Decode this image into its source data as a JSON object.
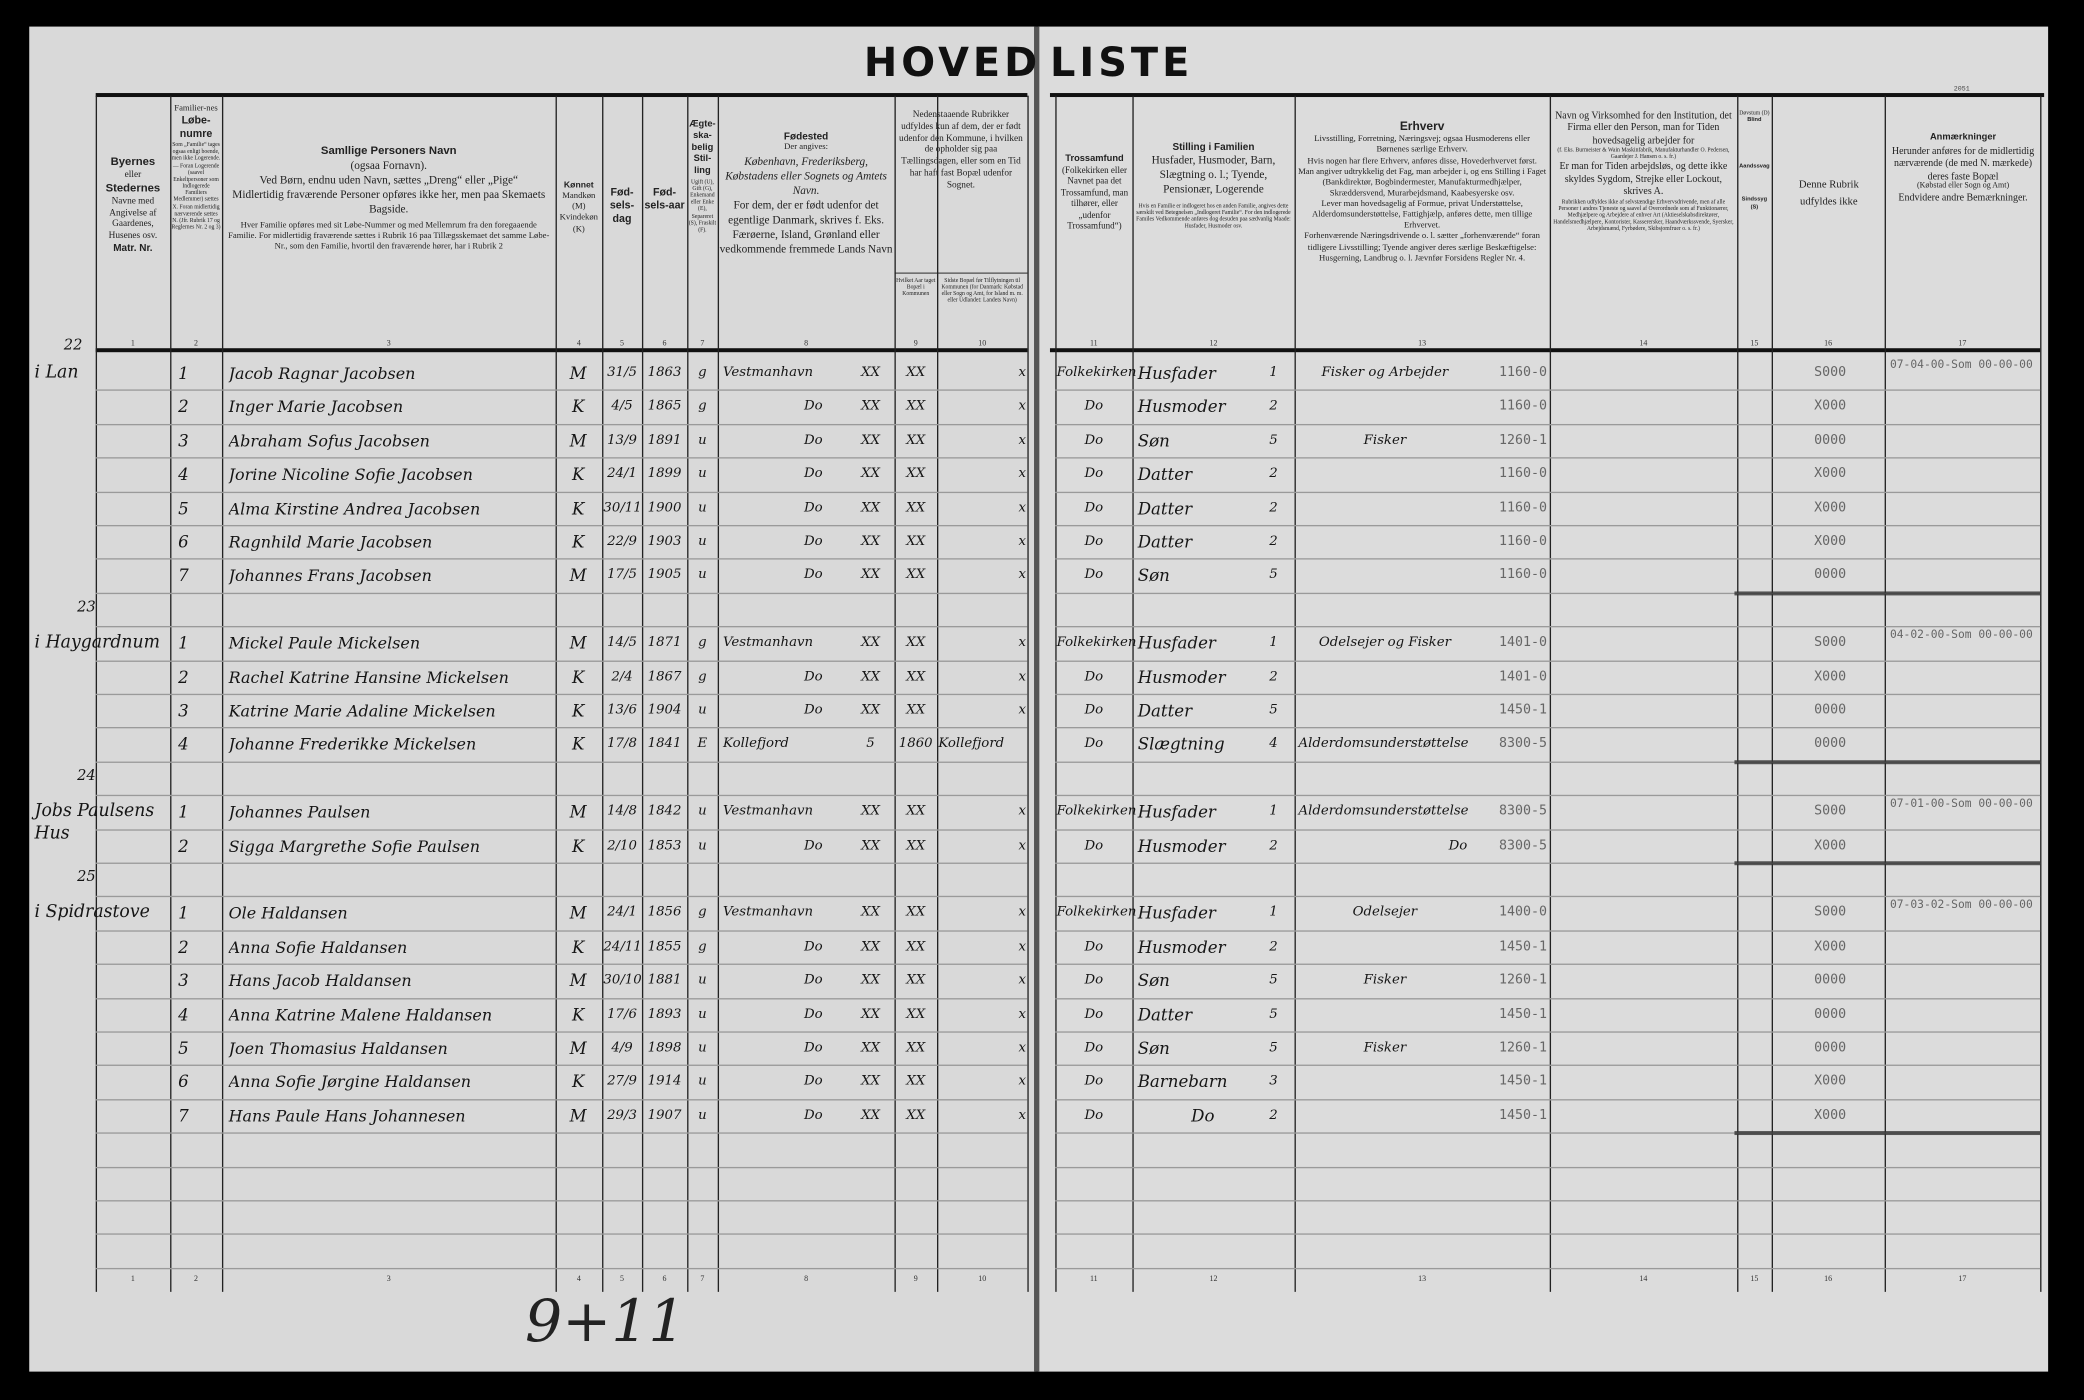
{
  "title": {
    "left": "HOVED",
    "right": "LISTE"
  },
  "stamp": "2051",
  "headers": {
    "c1": [
      "Byernes",
      "eller",
      "Stedernes",
      "Navne med Angivelse af Gaardenes, Husenes osv.",
      "Matr. Nr."
    ],
    "c2": [
      "Familier-nes",
      "Løbe-numre",
      "Som „Familie“ tages ogsaa enligt boende, men ikke Logerende. — Foran Logerende (saavel Enkeltpersoner som Indlogerede Familiers Medlemmer) sættes X. Foran midlertidig nærværende sættes N. (Jfr. Rubrik 17 og Reglernes Nr. 2 og 3)"
    ],
    "c3": [
      "Samllige Personers Navn",
      "(ogsaa Fornavn).",
      "Ved Børn, endnu uden Navn, sættes „Dreng“ eller „Pige“",
      "Midlertidig fraværende Personer opføres ikke her, men paa Skemaets Bagside.",
      "Hver Familie opføres med sit Løbe-Nummer og med Mellemrum fra den foregaaende Familie. For midlertidig fraværende sættes i Rubrik 16 paa Tillægsskemaet det samme Løbe-Nr., som den Familie, hvortil den fraværende hører, har i Rubrik 2"
    ],
    "c4": [
      "Kønnet",
      "Mandkøn (M) Kvindekøn (K)"
    ],
    "c5": [
      "Fød-sels-dag"
    ],
    "c6": [
      "Fød-sels-aar"
    ],
    "c7": [
      "Ægte-ska-belig Stil-ling",
      "Ugift (U), Gift (G), Enkemand eller Enke (E), Separeret (S), Fraskilt (F)."
    ],
    "c8": [
      "Fødested",
      "Der angives:",
      "København, Frederiksberg, Købstadens eller Sognets og Amtets Navn.",
      "For dem, der er født udenfor det egentlige Danmark, skrives f. Eks. Færøerne, Island, Grønland eller vedkommende fremmede Lands Navn"
    ],
    "c9_10": [
      "Nedenstaaende Rubrikker udfyldes kun af dem, der er født udenfor den Kommune, i hvilken de opholder sig paa Tællingsdagen, eller som en Tid har haft fast Bopæl udenfor Sognet."
    ],
    "c9": [
      "Hvilket Aar taget Bopæl i Kommunen"
    ],
    "c10": [
      "Sidste Bopæl før Tilflytningen til Kommunen (for Danmark: Købstad eller Sogn og Amt, for Island m. m. eller Udlandet: Landets Navn)"
    ],
    "c11": [
      "Trossamfund",
      "(Folkekirken eller Navnet paa det Trossamfund, man tilhører, eller „udenfor Trossamfund“)"
    ],
    "c12": [
      "Stilling i Familien",
      "Husfader, Husmoder, Barn, Slægtning o. l.; Tyende, Pensionær, Logerende",
      "Hvis en Familie er indlogeret hos en anden Familie, angives dette særskilt ved Betegnelsen „Indlogeret Familie“. For den indlogerede Familes Vedkommende anføres dog desuden paa sædvanlig Maade: Husfader, Husmoder osv."
    ],
    "c13": [
      "Erhverv",
      "Livsstilling, Forretning, Næringsvej; ogsaa Husmoderens eller Børnenes særlige Erhverv.",
      "Hvis nogen har flere Erhverv, anføres disse, Hovederhvervet først.",
      "Man angiver udtrykkelig det Fag, man arbejder i, og ens Stilling i Faget (Bankdirektør, Bogbindermester, Manufakturmedhjælper, Skræddersvend, Murarbejdsmand, Kaabesyerske osv.",
      "Lever man hovedsagelig af Formue, privat Understøttelse, Alderdomsunderstøttelse, Fattighjælp, anføres dette, men tillige Erhvervet.",
      "Forhenværende Næringsdrivende o. l. sætter „forhenværende“ foran tidligere Livsstilling; Tyende angiver deres særlige Beskæftigelse: Husgerning, Landbrug o. l. Jævnfør Forsidens Regler Nr. 4."
    ],
    "c14": [
      "Navn og Virksomhed for den Institution, det Firma eller den Person, man for Tiden hovedsagelig arbejder for",
      "(f. Eks. Burmeister & Wain Maskinfabrik, Manufakturhandler O. Pedersen, Gaardejer J. Hansen o. s. fr.)",
      "Er man for Tiden arbejdsløs, og dette ikke skyldes Sygdom, Strejke eller Lockout, skrives A.",
      "Rubrikken udfyldes ikke af selvstændige Erhvervsdrivende, men af alle Personer i andres Tjeneste og saavel af Overordnede som af Funktionærer, Medhjælpere og Arbejdere af enhver Art (Aktieselskabsdirektører, Handelsmedhjælpere, Kontorister, Kasserersker, Haandværkssvende, Syersker, Arbejdsmænd, Fyrbødere, Skibsjomfruer o. s. fr.)"
    ],
    "c15": [
      "Døvstum (D)",
      "Blind",
      "Aandssvag",
      "Sindssyg (S)"
    ],
    "c16": [
      "Denne Rubrik udfyldes ikke"
    ],
    "c17": [
      "Anmærkninger",
      "Herunder anføres for de midlertidig nærværende (de med N. mærkede) deres faste Bopæl",
      "(Købstad eller Sogn og Amt)",
      "Endvidere andre Bemærkninger."
    ]
  },
  "column_numbers": [
    "1",
    "2",
    "3",
    "4",
    "5",
    "6",
    "7",
    "8",
    "9",
    "10",
    "11",
    "12",
    "13",
    "14",
    "15",
    "16",
    "17"
  ],
  "families": [
    {
      "family_no": "22",
      "place": "i Lan",
      "rows": [
        {
          "no": "1",
          "name": "Jacob Ragnar Jacobsen",
          "sex": "M",
          "day": "31/5",
          "year": "1863",
          "civil": "g",
          "birthplace": "Vestmanhavn",
          "bp_mark": "XX",
          "c9": "XX",
          "c10": "x",
          "faith": "Folkekirken",
          "position": "Husfader",
          "pos_code": "1",
          "occupation": "Fisker og Arbejder",
          "occ_code": "1160-0",
          "c16": "S000",
          "remark": "07-04-00-Som 00-00-00"
        },
        {
          "no": "2",
          "name": "Inger Marie Jacobsen",
          "sex": "K",
          "day": "4/5",
          "year": "1865",
          "civil": "g",
          "birthplace": "Do",
          "bp_mark": "XX",
          "c9": "XX",
          "c10": "x",
          "faith": "Do",
          "position": "Husmoder",
          "pos_code": "2",
          "occupation": "",
          "occ_code": "1160-0",
          "c16": "X000",
          "remark": ""
        },
        {
          "no": "3",
          "name": "Abraham Sofus Jacobsen",
          "sex": "M",
          "day": "13/9",
          "year": "1891",
          "civil": "u",
          "birthplace": "Do",
          "bp_mark": "XX",
          "c9": "XX",
          "c10": "x",
          "faith": "Do",
          "position": "Søn",
          "pos_code": "5",
          "occupation": "Fisker",
          "occ_code": "1260-1",
          "c16": "0000",
          "remark": ""
        },
        {
          "no": "4",
          "name": "Jorine Nicoline Sofie Jacobsen",
          "sex": "K",
          "day": "24/1",
          "year": "1899",
          "civil": "u",
          "birthplace": "Do",
          "bp_mark": "XX",
          "c9": "XX",
          "c10": "x",
          "faith": "Do",
          "position": "Datter",
          "pos_code": "2",
          "occupation": "",
          "occ_code": "1160-0",
          "c16": "X000",
          "remark": ""
        },
        {
          "no": "5",
          "name": "Alma Kirstine Andrea Jacobsen",
          "sex": "K",
          "day": "30/11",
          "year": "1900",
          "civil": "u",
          "birthplace": "Do",
          "bp_mark": "XX",
          "c9": "XX",
          "c10": "x",
          "faith": "Do",
          "position": "Datter",
          "pos_code": "2",
          "occupation": "",
          "occ_code": "1160-0",
          "c16": "X000",
          "remark": ""
        },
        {
          "no": "6",
          "name": "Ragnhild Marie Jacobsen",
          "sex": "K",
          "day": "22/9",
          "year": "1903",
          "civil": "u",
          "birthplace": "Do",
          "bp_mark": "XX",
          "c9": "XX",
          "c10": "x",
          "faith": "Do",
          "position": "Datter",
          "pos_code": "2",
          "occupation": "",
          "occ_code": "1160-0",
          "c16": "X000",
          "remark": ""
        },
        {
          "no": "7",
          "name": "Johannes Frans Jacobsen",
          "sex": "M",
          "day": "17/5",
          "year": "1905",
          "civil": "u",
          "birthplace": "Do",
          "bp_mark": "XX",
          "c9": "XX",
          "c10": "x",
          "faith": "Do",
          "position": "Søn",
          "pos_code": "5",
          "occupation": "",
          "occ_code": "1160-0",
          "c16": "0000",
          "remark": ""
        }
      ]
    },
    {
      "family_no": "23",
      "place": "i Haygardnum",
      "rows": [
        {
          "no": "1",
          "name": "Mickel Paule Mickelsen",
          "sex": "M",
          "day": "14/5",
          "year": "1871",
          "civil": "g",
          "birthplace": "Vestmanhavn",
          "bp_mark": "XX",
          "c9": "XX",
          "c10": "x",
          "faith": "Folkekirken",
          "position": "Husfader",
          "pos_code": "1",
          "occupation": "Odelsejer og Fisker",
          "occ_code": "1401-0",
          "c16": "S000",
          "remark": "04-02-00-Som 00-00-00"
        },
        {
          "no": "2",
          "name": "Rachel Katrine Hansine Mickelsen",
          "sex": "K",
          "day": "2/4",
          "year": "1867",
          "civil": "g",
          "birthplace": "Do",
          "bp_mark": "XX",
          "c9": "XX",
          "c10": "x",
          "faith": "Do",
          "position": "Husmoder",
          "pos_code": "2",
          "occupation": "",
          "occ_code": "1401-0",
          "c16": "X000",
          "remark": ""
        },
        {
          "no": "3",
          "name": "Katrine Marie Adaline Mickelsen",
          "sex": "K",
          "day": "13/6",
          "year": "1904",
          "civil": "u",
          "birthplace": "Do",
          "bp_mark": "XX",
          "c9": "XX",
          "c10": "x",
          "faith": "Do",
          "position": "Datter",
          "pos_code": "5",
          "occupation": "",
          "occ_code": "1450-1",
          "c16": "0000",
          "remark": ""
        },
        {
          "no": "4",
          "name": "Johanne Frederikke Mickelsen",
          "sex": "K",
          "day": "17/8",
          "year": "1841",
          "civil": "E",
          "birthplace": "Kollefjord",
          "bp_mark": "5",
          "c9": "1860",
          "c10": "Kollefjord",
          "faith": "Do",
          "position": "Slægtning",
          "pos_code": "4",
          "occupation": "Alderdomsunderstøttelse",
          "occ_code": "8300-5",
          "c16": "0000",
          "remark": ""
        }
      ]
    },
    {
      "family_no": "24",
      "place": "Jobs Paulsens Hus",
      "rows": [
        {
          "no": "1",
          "name": "Johannes Paulsen",
          "sex": "M",
          "day": "14/8",
          "year": "1842",
          "civil": "u",
          "birthplace": "Vestmanhavn",
          "bp_mark": "XX",
          "c9": "XX",
          "c10": "x",
          "faith": "Folkekirken",
          "position": "Husfader",
          "pos_code": "1",
          "occupation": "Alderdomsunderstøttelse",
          "occ_code": "8300-5",
          "c16": "S000",
          "remark": "07-01-00-Som 00-00-00"
        },
        {
          "no": "2",
          "name": "Sigga Margrethe Sofie Paulsen",
          "sex": "K",
          "day": "2/10",
          "year": "1853",
          "civil": "u",
          "birthplace": "Do",
          "bp_mark": "XX",
          "c9": "XX",
          "c10": "x",
          "faith": "Do",
          "position": "Husmoder",
          "pos_code": "2",
          "occupation": "Do",
          "occ_code": "8300-5",
          "c16": "X000",
          "remark": ""
        }
      ]
    },
    {
      "family_no": "25",
      "place": "i Spidrastove",
      "rows": [
        {
          "no": "1",
          "name": "Ole Haldansen",
          "sex": "M",
          "day": "24/1",
          "year": "1856",
          "civil": "g",
          "birthplace": "Vestmanhavn",
          "bp_mark": "XX",
          "c9": "XX",
          "c10": "x",
          "faith": "Folkekirken",
          "position": "Husfader",
          "pos_code": "1",
          "occupation": "Odelsejer",
          "occ_code": "1400-0",
          "c16": "S000",
          "remark": "07-03-02-Som 00-00-00"
        },
        {
          "no": "2",
          "name": "Anna Sofie Haldansen",
          "sex": "K",
          "day": "24/11",
          "year": "1855",
          "civil": "g",
          "birthplace": "Do",
          "bp_mark": "XX",
          "c9": "XX",
          "c10": "x",
          "faith": "Do",
          "position": "Husmoder",
          "pos_code": "2",
          "occupation": "",
          "occ_code": "1450-1",
          "c16": "X000",
          "remark": ""
        },
        {
          "no": "3",
          "name": "Hans Jacob Haldansen",
          "sex": "M",
          "day": "30/10",
          "year": "1881",
          "civil": "u",
          "birthplace": "Do",
          "bp_mark": "XX",
          "c9": "XX",
          "c10": "x",
          "faith": "Do",
          "position": "Søn",
          "pos_code": "5",
          "occupation": "Fisker",
          "occ_code": "1260-1",
          "c16": "0000",
          "remark": ""
        },
        {
          "no": "4",
          "name": "Anna Katrine Malene Haldansen",
          "sex": "K",
          "day": "17/6",
          "year": "1893",
          "civil": "u",
          "birthplace": "Do",
          "bp_mark": "XX",
          "c9": "XX",
          "c10": "x",
          "faith": "Do",
          "position": "Datter",
          "pos_code": "5",
          "occupation": "",
          "occ_code": "1450-1",
          "c16": "0000",
          "remark": ""
        },
        {
          "no": "5",
          "name": "Joen Thomasius Haldansen",
          "sex": "M",
          "day": "4/9",
          "year": "1898",
          "civil": "u",
          "birthplace": "Do",
          "bp_mark": "XX",
          "c9": "XX",
          "c10": "x",
          "faith": "Do",
          "position": "Søn",
          "pos_code": "5",
          "occupation": "Fisker",
          "occ_code": "1260-1",
          "c16": "0000",
          "remark": ""
        },
        {
          "no": "6",
          "name": "Anna Sofie Jørgine Haldansen",
          "sex": "K",
          "day": "27/9",
          "year": "1914",
          "civil": "u",
          "birthplace": "Do",
          "bp_mark": "XX",
          "c9": "XX",
          "c10": "x",
          "faith": "Do",
          "position": "Barnebarn",
          "pos_code": "3",
          "occupation": "",
          "occ_code": "1450-1",
          "c16": "X000",
          "remark": ""
        },
        {
          "no": "7",
          "name": "Hans Paule Hans Johannesen",
          "sex": "M",
          "day": "29/3",
          "year": "1907",
          "civil": "u",
          "birthplace": "Do",
          "bp_mark": "XX",
          "c9": "XX",
          "c10": "x",
          "faith": "Do",
          "position": "Do",
          "pos_code": "2",
          "occupation": "",
          "occ_code": "1450-1",
          "c16": "X000",
          "remark": ""
        }
      ]
    }
  ],
  "tally": "9+11"
}
